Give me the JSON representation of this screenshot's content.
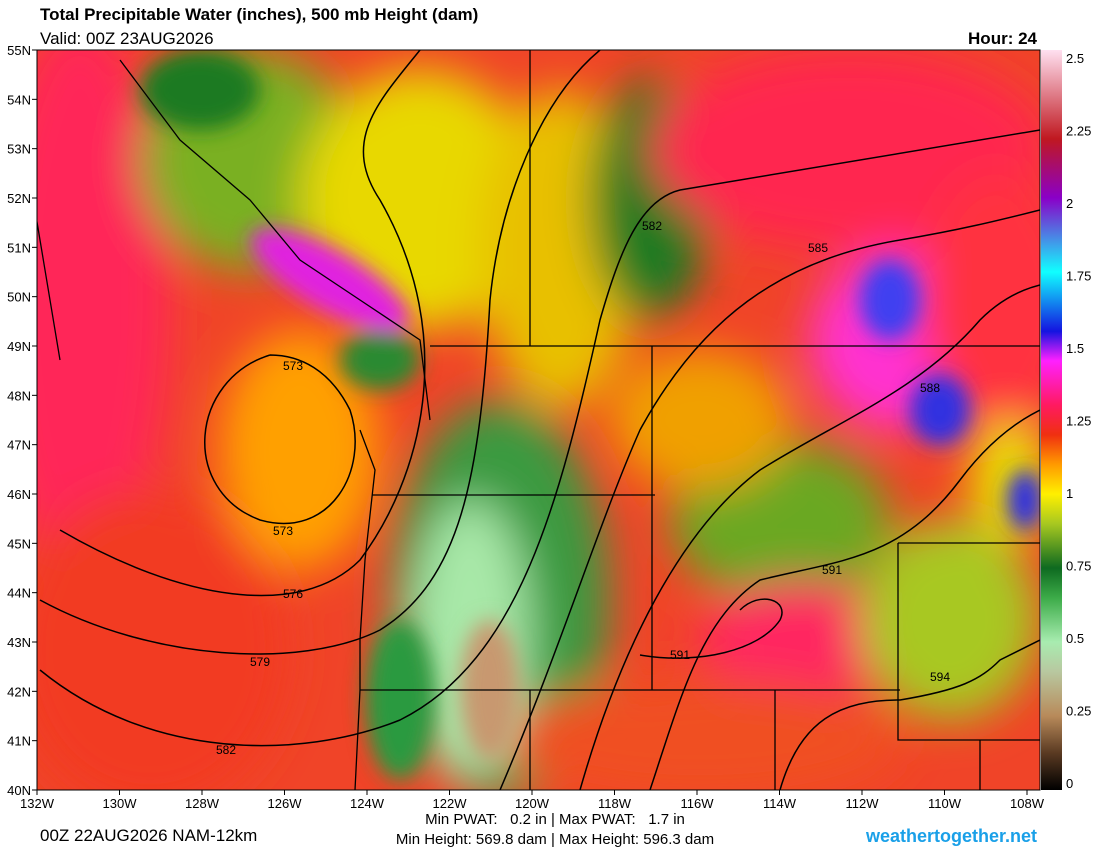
{
  "header": {
    "title": "Total Precipitable Water (inches), 500 mb Height (dam)",
    "valid": "Valid: 00Z 23AUG2026",
    "hour": "Hour: 24"
  },
  "map": {
    "lat_labels": [
      "55N",
      "54N",
      "53N",
      "52N",
      "51N",
      "50N",
      "49N",
      "48N",
      "47N",
      "46N",
      "45N",
      "44N",
      "43N",
      "42N",
      "41N",
      "40N"
    ],
    "lon_labels": [
      "132W",
      "130W",
      "128W",
      "126W",
      "124W",
      "122W",
      "120W",
      "118W",
      "116W",
      "114W",
      "112W",
      "110W",
      "108W"
    ],
    "contour_labels": [
      "573",
      "573",
      "576",
      "579",
      "582",
      "582",
      "585",
      "588",
      "591",
      "591",
      "594"
    ]
  },
  "colorbar": {
    "labels": [
      "2.5",
      "2.25",
      "2",
      "1.75",
      "1.5",
      "1.25",
      "1",
      "0.75",
      "0.5",
      "0.25",
      "0"
    ]
  },
  "footer": {
    "run": "00Z 22AUG2026 NAM-12km",
    "pwat": "Min PWAT:   0.2 in | Max PWAT:   1.7 in",
    "height": "Min Height: 569.8 dam | Max Height: 596.3 dam",
    "site": "weathertogether.net"
  }
}
